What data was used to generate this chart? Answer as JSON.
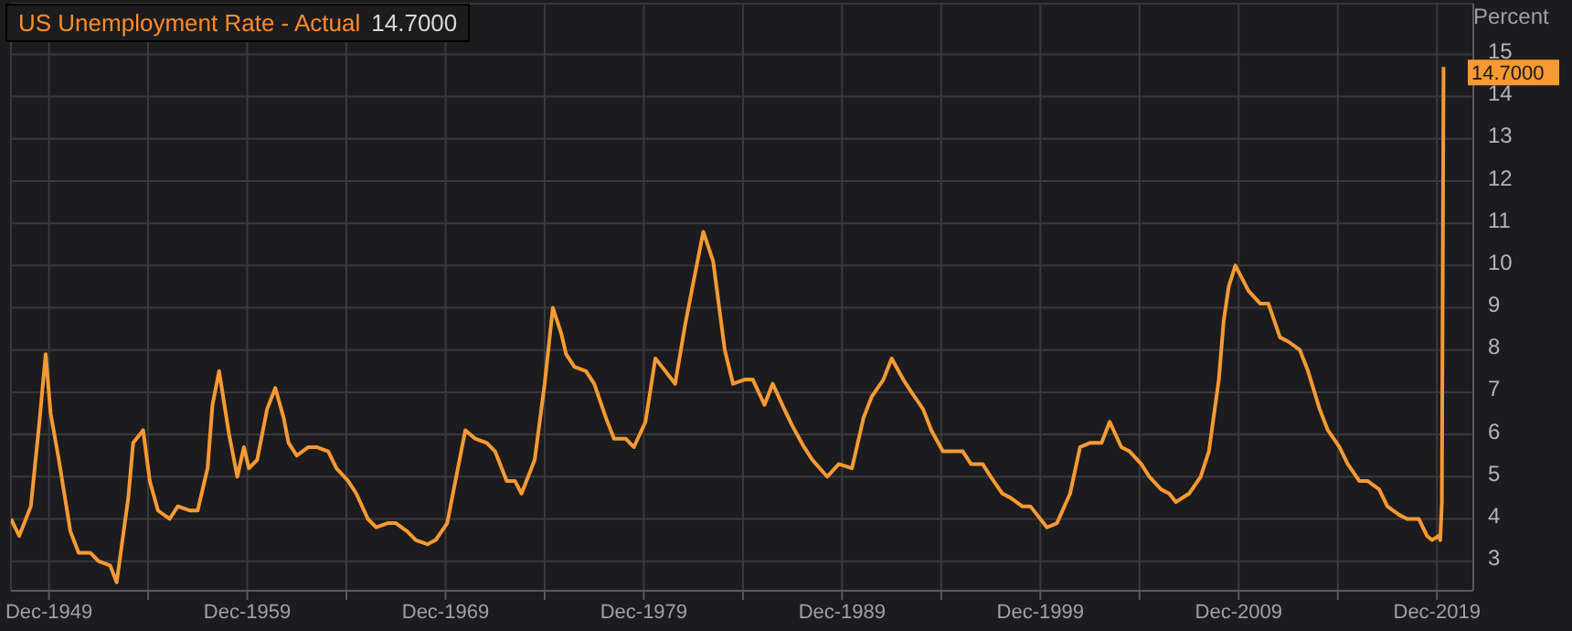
{
  "chart_data": {
    "type": "line",
    "title": "US Unemployment Rate - Actual",
    "subtitle": "14.7000",
    "ylabel": "Percent",
    "x": [
      "1948-01",
      "1948-06",
      "1949-01",
      "1949-06",
      "1949-10",
      "1950-01",
      "1950-06",
      "1951-01",
      "1951-06",
      "1952-01",
      "1952-06",
      "1953-01",
      "1953-05",
      "1953-12",
      "1954-03",
      "1954-09",
      "1955-01",
      "1955-06",
      "1956-01",
      "1956-06",
      "1957-01",
      "1957-06",
      "1957-12",
      "1958-03",
      "1958-07",
      "1959-01",
      "1959-06",
      "1959-10",
      "1960-01",
      "1960-06",
      "1960-12",
      "1961-05",
      "1961-10",
      "1962-01",
      "1962-06",
      "1963-01",
      "1963-06",
      "1964-01",
      "1964-06",
      "1965-01",
      "1965-06",
      "1966-01",
      "1966-06",
      "1967-01",
      "1967-06",
      "1968-01",
      "1968-06",
      "1969-01",
      "1969-06",
      "1970-01",
      "1970-06",
      "1970-12",
      "1971-06",
      "1972-01",
      "1972-06",
      "1973-01",
      "1973-06",
      "1973-10",
      "1974-06",
      "1974-12",
      "1975-05",
      "1975-10",
      "1976-01",
      "1976-06",
      "1977-01",
      "1977-06",
      "1978-01",
      "1978-06",
      "1979-01",
      "1979-06",
      "1980-01",
      "1980-07",
      "1981-01",
      "1981-07",
      "1982-01",
      "1982-06",
      "1982-12",
      "1983-06",
      "1984-01",
      "1984-06",
      "1985-01",
      "1985-06",
      "1986-01",
      "1986-06",
      "1987-01",
      "1987-06",
      "1988-01",
      "1988-06",
      "1989-03",
      "1989-10",
      "1990-06",
      "1991-01",
      "1991-06",
      "1992-01",
      "1992-06",
      "1993-01",
      "1993-06",
      "1994-01",
      "1994-06",
      "1995-01",
      "1995-06",
      "1996-01",
      "1996-06",
      "1997-01",
      "1997-06",
      "1998-01",
      "1998-06",
      "1999-01",
      "1999-06",
      "2000-04",
      "2000-10",
      "2001-06",
      "2001-12",
      "2002-06",
      "2003-01",
      "2003-06",
      "2004-01",
      "2004-06",
      "2005-01",
      "2005-06",
      "2006-01",
      "2006-06",
      "2006-10",
      "2007-06",
      "2008-01",
      "2008-06",
      "2008-12",
      "2009-03",
      "2009-06",
      "2009-10",
      "2010-06",
      "2011-01",
      "2011-06",
      "2012-01",
      "2012-06",
      "2013-01",
      "2013-06",
      "2014-01",
      "2014-06",
      "2015-01",
      "2015-06",
      "2016-01",
      "2016-06",
      "2017-01",
      "2017-06",
      "2018-01",
      "2018-06",
      "2019-01",
      "2019-06",
      "2019-09",
      "2020-01",
      "2020-02",
      "2020-03",
      "2020-04"
    ],
    "series": [
      {
        "color": "#f79a33",
        "values": [
          4.0,
          3.6,
          4.3,
          6.2,
          7.9,
          6.5,
          5.4,
          3.7,
          3.2,
          3.2,
          3.0,
          2.9,
          2.5,
          4.5,
          5.8,
          6.1,
          4.9,
          4.2,
          4.0,
          4.3,
          4.2,
          4.2,
          5.2,
          6.7,
          7.5,
          6.0,
          5.0,
          5.7,
          5.2,
          5.4,
          6.6,
          7.1,
          6.4,
          5.8,
          5.5,
          5.7,
          5.7,
          5.6,
          5.2,
          4.9,
          4.6,
          4.0,
          3.8,
          3.9,
          3.9,
          3.7,
          3.5,
          3.4,
          3.5,
          3.9,
          4.9,
          6.1,
          5.9,
          5.8,
          5.6,
          4.9,
          4.9,
          4.6,
          5.4,
          7.2,
          9.0,
          8.4,
          7.9,
          7.6,
          7.5,
          7.2,
          6.4,
          5.9,
          5.9,
          5.7,
          6.3,
          7.8,
          7.5,
          7.2,
          8.6,
          9.6,
          10.8,
          10.1,
          8.0,
          7.2,
          7.3,
          7.3,
          6.7,
          7.2,
          6.6,
          6.2,
          5.7,
          5.4,
          5.0,
          5.3,
          5.2,
          6.4,
          6.9,
          7.3,
          7.8,
          7.3,
          7.0,
          6.6,
          6.1,
          5.6,
          5.6,
          5.6,
          5.3,
          5.3,
          5.0,
          4.6,
          4.5,
          4.3,
          4.3,
          3.8,
          3.9,
          4.6,
          5.7,
          5.8,
          5.8,
          6.3,
          5.7,
          5.6,
          5.3,
          5.0,
          4.7,
          4.6,
          4.4,
          4.6,
          5.0,
          5.6,
          7.3,
          8.7,
          9.5,
          10.0,
          9.4,
          9.1,
          9.1,
          8.3,
          8.2,
          8.0,
          7.5,
          6.6,
          6.1,
          5.7,
          5.3,
          4.9,
          4.9,
          4.7,
          4.3,
          4.1,
          4.0,
          4.0,
          3.6,
          3.5,
          3.6,
          3.5,
          4.4,
          14.7
        ]
      }
    ],
    "xlim": [
      "1948-01",
      "2021-10"
    ],
    "xticks": [
      {
        "value": "1949-12",
        "label": "Dec-1949"
      },
      {
        "value": "1954-12",
        "label": null
      },
      {
        "value": "1959-12",
        "label": "Dec-1959"
      },
      {
        "value": "1964-12",
        "label": null
      },
      {
        "value": "1969-12",
        "label": "Dec-1969"
      },
      {
        "value": "1974-12",
        "label": null
      },
      {
        "value": "1979-12",
        "label": "Dec-1979"
      },
      {
        "value": "1984-12",
        "label": null
      },
      {
        "value": "1989-12",
        "label": "Dec-1989"
      },
      {
        "value": "1994-12",
        "label": null
      },
      {
        "value": "1999-12",
        "label": "Dec-1999"
      },
      {
        "value": "2004-12",
        "label": null
      },
      {
        "value": "2009-12",
        "label": "Dec-2009"
      },
      {
        "value": "2014-12",
        "label": null
      },
      {
        "value": "2019-12",
        "label": "Dec-2019"
      }
    ],
    "ylim": [
      2.3,
      16.2
    ],
    "yticks": [
      3,
      4,
      5,
      6,
      7,
      8,
      9,
      10,
      11,
      12,
      13,
      14,
      15
    ],
    "grid": true,
    "marker": "none",
    "line_style": "solid",
    "annotations": [
      {
        "text": "14.7000",
        "x": "2020-04",
        "y": 14.7
      }
    ]
  }
}
